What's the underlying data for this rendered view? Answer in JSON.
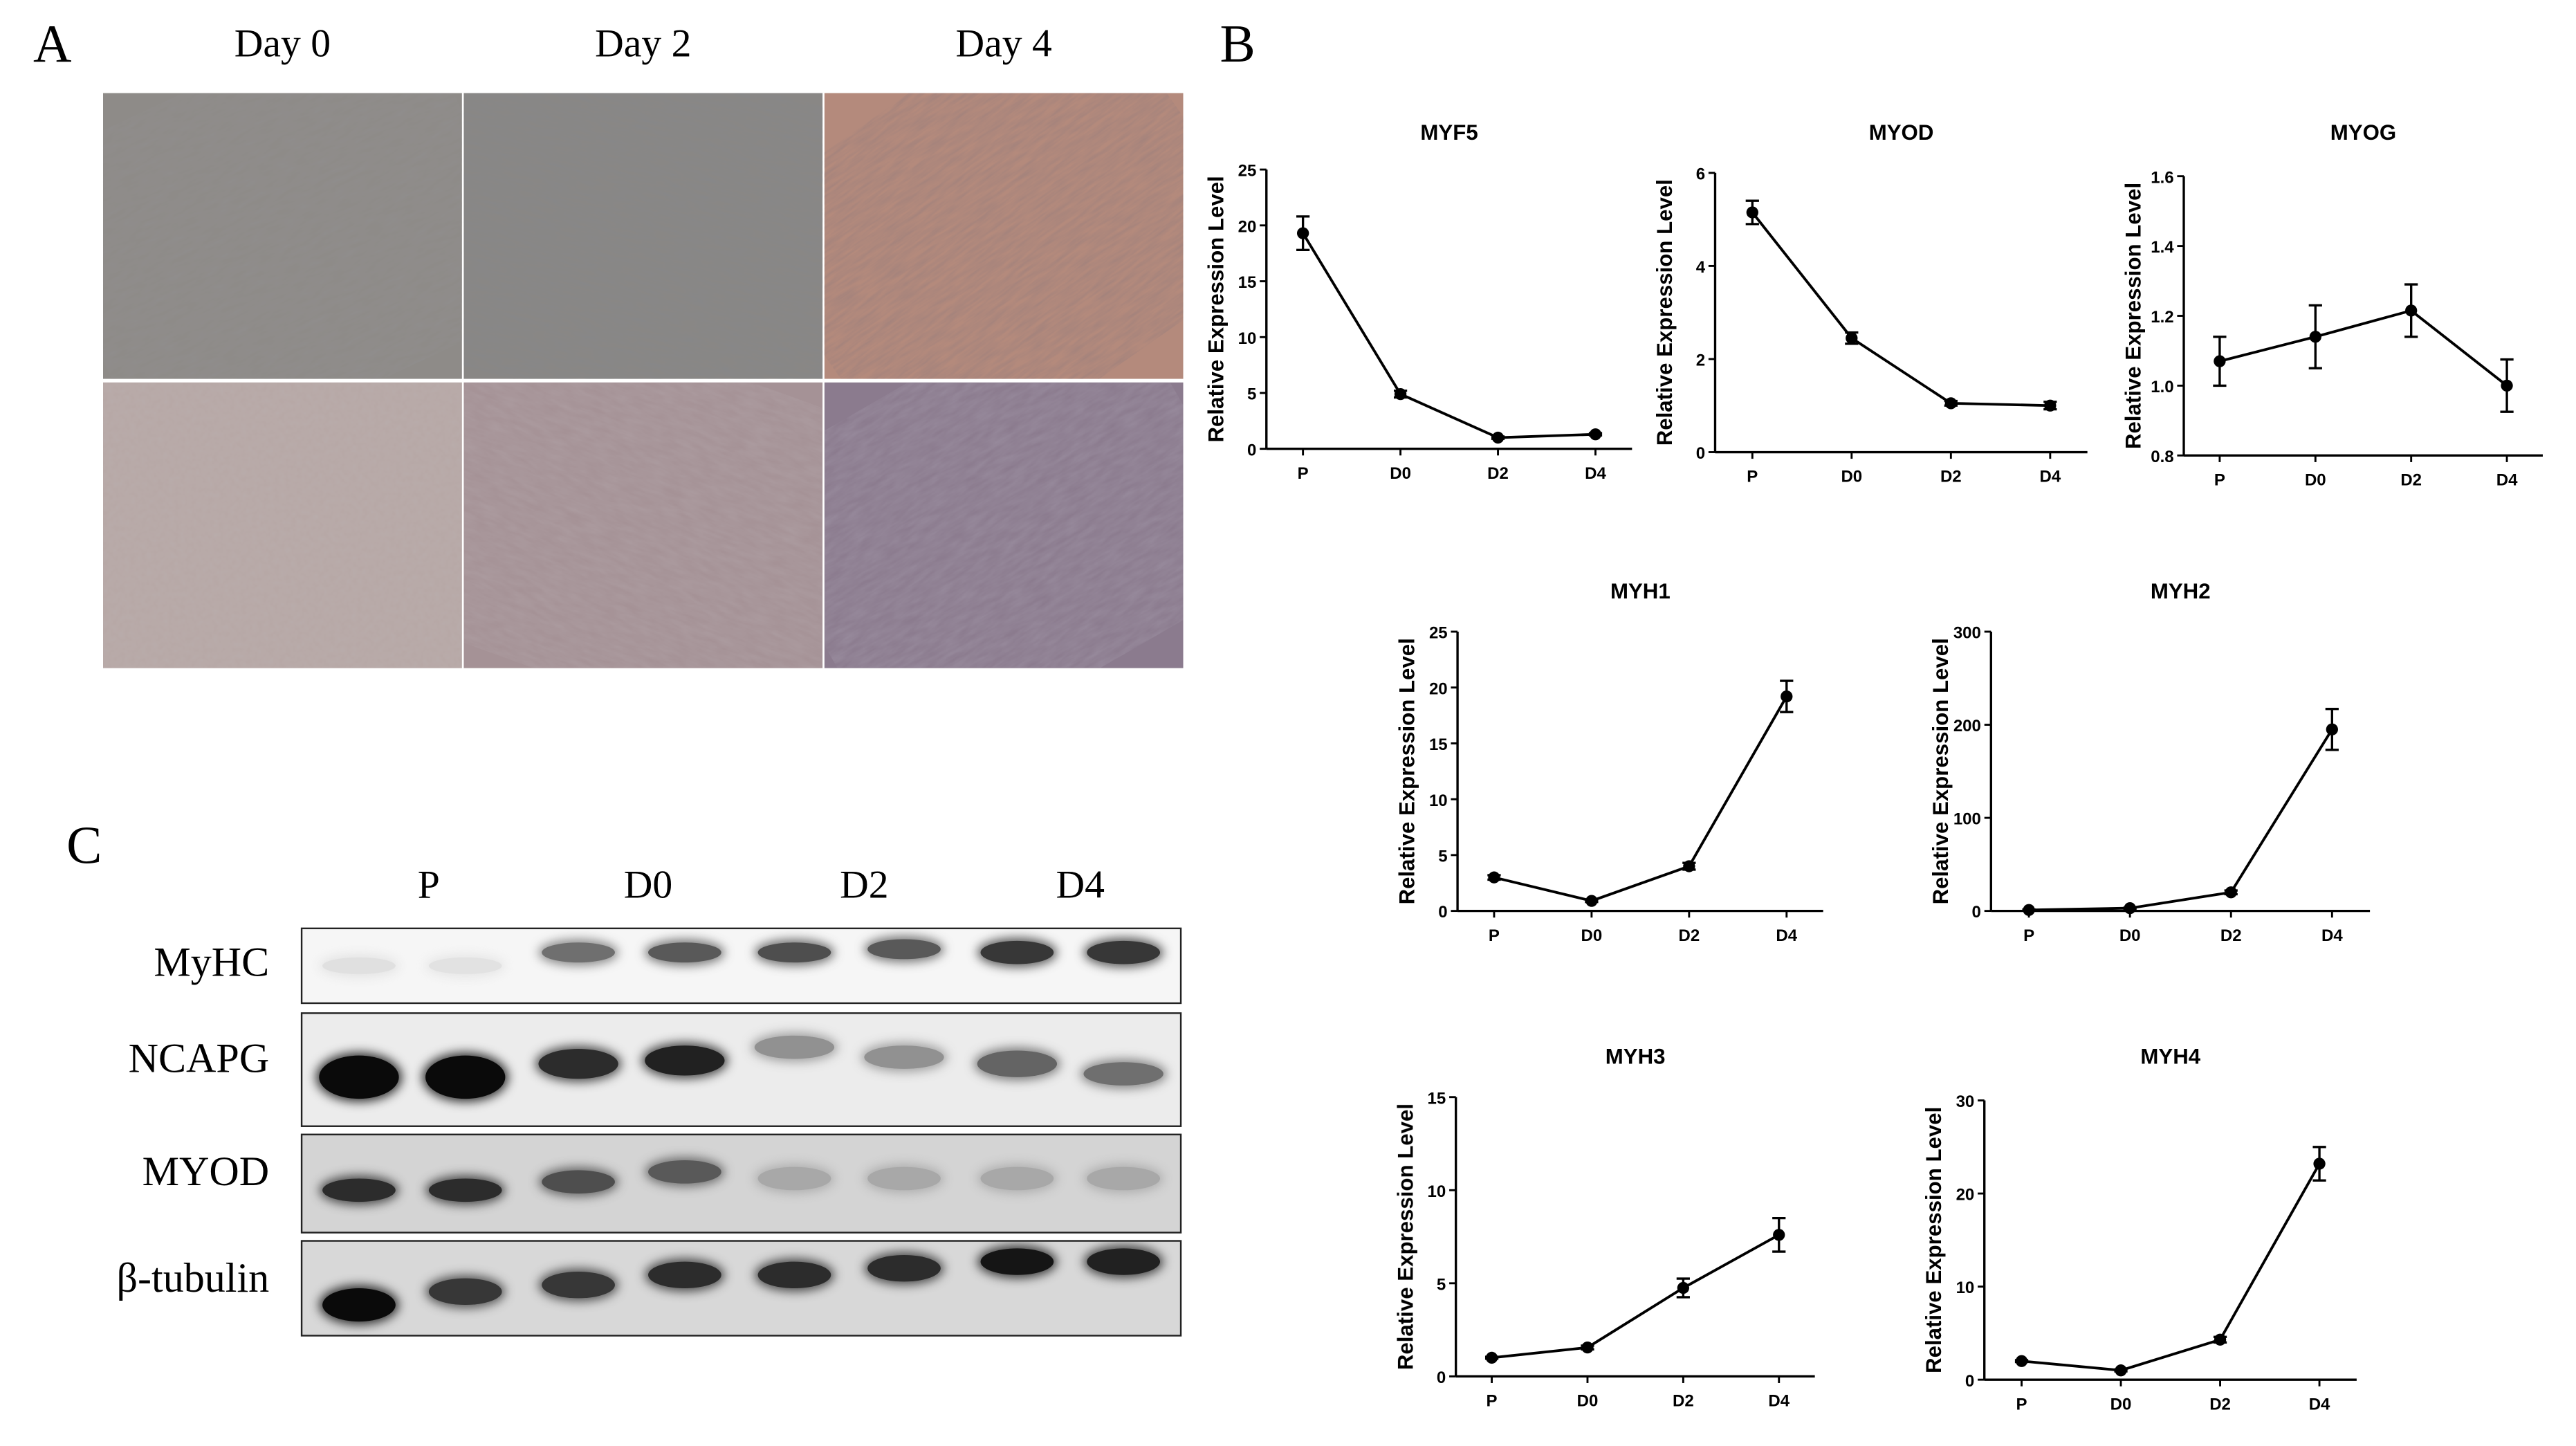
{
  "panel_labels": {
    "a": "A",
    "b": "B",
    "c": "C"
  },
  "panel_a": {
    "columns": [
      "Day 0",
      "Day 2",
      "Day 4"
    ],
    "rows": [
      "phase-contrast-top",
      "brightfield-bottom"
    ]
  },
  "panel_c": {
    "lanes": [
      "P",
      "D0",
      "D2",
      "D4"
    ],
    "rows": [
      "MyHC",
      "NCAPG",
      "MYOD",
      "β-tubulin"
    ],
    "band_intensity": {
      "MyHC": [
        0.05,
        0.04,
        0.55,
        0.65,
        0.7,
        0.65,
        0.8,
        0.8
      ],
      "NCAPG": [
        1.0,
        1.0,
        0.85,
        0.9,
        0.4,
        0.4,
        0.6,
        0.55
      ],
      "MYOD": [
        0.85,
        0.85,
        0.7,
        0.65,
        0.3,
        0.3,
        0.3,
        0.3
      ],
      "β-tubulin": [
        1.0,
        0.8,
        0.8,
        0.85,
        0.85,
        0.85,
        0.95,
        0.9
      ]
    }
  },
  "chart_data": [
    {
      "type": "line",
      "title": "MYF5",
      "ylabel": "Relative Expression Level",
      "categories": [
        "P",
        "D0",
        "D2",
        "D4"
      ],
      "values": [
        19.3,
        4.9,
        1.0,
        1.3
      ],
      "errors": [
        1.5,
        0.3,
        0.1,
        0.1
      ],
      "ylim": [
        0,
        25
      ],
      "yticks": [
        0,
        5,
        10,
        15,
        20,
        25
      ]
    },
    {
      "type": "line",
      "title": "MYOD",
      "ylabel": "Relative Expression Level",
      "categories": [
        "P",
        "D0",
        "D2",
        "D4"
      ],
      "values": [
        5.15,
        2.45,
        1.05,
        1.0
      ],
      "errors": [
        0.25,
        0.12,
        0.05,
        0.08
      ],
      "ylim": [
        0,
        6
      ],
      "yticks": [
        0,
        2,
        4,
        6
      ]
    },
    {
      "type": "line",
      "title": "MYOG",
      "ylabel": "Relative Expression Level",
      "categories": [
        "P",
        "D0",
        "D2",
        "D4"
      ],
      "values": [
        1.07,
        1.14,
        1.215,
        1.0
      ],
      "errors": [
        0.07,
        0.09,
        0.075,
        0.075
      ],
      "ylim": [
        0.8,
        1.6
      ],
      "yticks": [
        0.8,
        1.0,
        1.2,
        1.4,
        1.6
      ]
    },
    {
      "type": "line",
      "title": "MYH1",
      "ylabel": "Relative Expression Level",
      "categories": [
        "P",
        "D0",
        "D2",
        "D4"
      ],
      "values": [
        3.0,
        0.9,
        4.0,
        19.2
      ],
      "errors": [
        0.2,
        0.1,
        0.3,
        1.4
      ],
      "ylim": [
        0,
        25
      ],
      "yticks": [
        0,
        5,
        10,
        15,
        20,
        25
      ]
    },
    {
      "type": "line",
      "title": "MYH2",
      "ylabel": "Relative Expression Level",
      "categories": [
        "P",
        "D0",
        "D2",
        "D4"
      ],
      "values": [
        1,
        3,
        20,
        195
      ],
      "errors": [
        0.5,
        0.5,
        2,
        22
      ],
      "ylim": [
        0,
        300
      ],
      "yticks": [
        0,
        100,
        200,
        300
      ]
    },
    {
      "type": "line",
      "title": "MYH3",
      "ylabel": "Relative Expression Level",
      "categories": [
        "P",
        "D0",
        "D2",
        "D4"
      ],
      "values": [
        1.0,
        1.55,
        4.75,
        7.6
      ],
      "errors": [
        0.05,
        0.1,
        0.5,
        0.9
      ],
      "ylim": [
        0,
        15
      ],
      "yticks": [
        0,
        5,
        10,
        15
      ]
    },
    {
      "type": "line",
      "title": "MYH4",
      "ylabel": "Relative Expression Level",
      "categories": [
        "P",
        "D0",
        "D2",
        "D4"
      ],
      "values": [
        2.0,
        1.0,
        4.3,
        23.2
      ],
      "errors": [
        0.1,
        0.1,
        0.3,
        1.8
      ],
      "ylim": [
        0,
        30
      ],
      "yticks": [
        0,
        10,
        20,
        30
      ]
    }
  ]
}
